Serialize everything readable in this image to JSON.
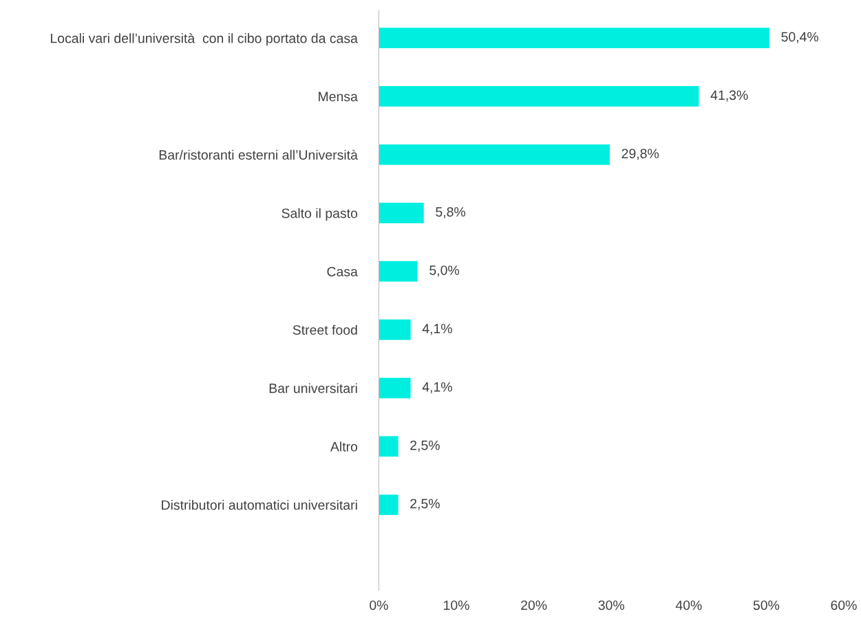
{
  "chart_data": {
    "type": "bar",
    "orientation": "horizontal",
    "categories": [
      "Locali vari dell’università  con il cibo portato da casa",
      "Mensa",
      "Bar/ristoranti esterni all’Università",
      "Salto il pasto",
      "Casa",
      "Street food",
      "Bar universitari",
      "Altro",
      "Distributori automatici universitari"
    ],
    "values": [
      50.4,
      41.3,
      29.8,
      5.8,
      5.0,
      4.1,
      4.1,
      2.5,
      2.5
    ],
    "value_labels": [
      "50,4%",
      "41,3%",
      "29,8%",
      "5,8%",
      "5,0%",
      "4,1%",
      "4,1%",
      "2,5%",
      "2,5%"
    ],
    "color": "#00eee0",
    "xlim": [
      0,
      60
    ],
    "xticks": [
      {
        "value": 0,
        "label": "0%"
      },
      {
        "value": 10,
        "label": "10%"
      },
      {
        "value": 20,
        "label": "20%"
      },
      {
        "value": 30,
        "label": "30%"
      },
      {
        "value": 40,
        "label": "40%"
      },
      {
        "value": 50,
        "label": "50%"
      },
      {
        "value": 60,
        "label": "60%"
      }
    ],
    "grid": false,
    "legend": false
  }
}
